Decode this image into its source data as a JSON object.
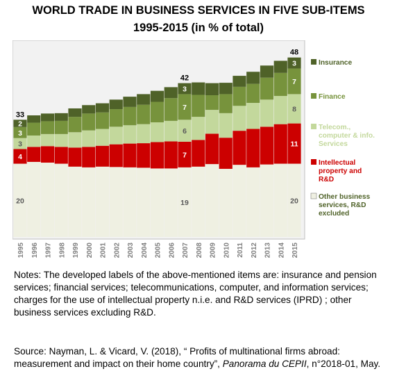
{
  "title": "WORLD TRADE IN BUSINESS SERVICES IN FIVE SUB-ITEMS",
  "subtitle": "1995-2015 (in % of total)",
  "notes": "Notes:  The developed labels of the above-mentioned items are: insurance and pension services; financial services; telecommunications, computer, and information  services; charges for the use of intellectual property n.i.e. and R&D services (IPRD) ; other business services excluding R&D.",
  "source": {
    "before": "Source: Nayman, L. & Vicard, V. (2018), “ Profits of multinational firms abroad: measurement and impact on their home country”, ",
    "italic": "Panorama du CEPII",
    "after": ", n°2018-01, May."
  },
  "chart_data": {
    "type": "bar",
    "stacked": true,
    "categories": [
      "1995",
      "1996",
      "1997",
      "1998",
      "1999",
      "2000",
      "2001",
      "2002",
      "2003",
      "2004",
      "2005",
      "2006",
      "2007",
      "2008",
      "2009",
      "2010",
      "2011",
      "2012",
      "2013",
      "2014",
      "2015"
    ],
    "series": [
      {
        "name": "Other business services, R&D excluded",
        "color": "#eff0e2",
        "values": [
          20,
          20.5,
          20.3,
          20,
          19.2,
          19,
          19.2,
          19.1,
          19,
          18.9,
          18.7,
          18.7,
          19,
          19.2,
          19.9,
          18.6,
          19.7,
          19,
          19.8,
          20,
          20
        ]
      },
      {
        "name": "Intellectual property and R&D",
        "color": "#cc0000",
        "values": [
          4,
          4.1,
          4.5,
          4.6,
          5.2,
          5.6,
          5.7,
          6.2,
          6.5,
          6.7,
          7.2,
          7.4,
          7,
          7.3,
          8.3,
          8.5,
          9.3,
          10.5,
          10.3,
          10.8,
          11
        ]
      },
      {
        "name": "Telecom., computer & info. Services",
        "color": "#c3d89c",
        "values": [
          3,
          3.1,
          3.3,
          3.5,
          4.2,
          4.5,
          4.6,
          4.8,
          5.0,
          5.2,
          5.4,
          5.6,
          6,
          6.3,
          6.5,
          6.7,
          6.8,
          7.1,
          7.4,
          7.7,
          8
        ]
      },
      {
        "name": "Finance",
        "color": "#77933c",
        "values": [
          3,
          3.5,
          3.5,
          3.6,
          4.2,
          4.6,
          4.5,
          4.8,
          5.0,
          5.3,
          5.6,
          6.2,
          7,
          6.0,
          4.0,
          5.2,
          5.2,
          5.2,
          6.0,
          6.3,
          7
        ]
      },
      {
        "name": "Insurance",
        "color": "#4f6228",
        "values": [
          2,
          2.0,
          2.1,
          2.1,
          2.3,
          2.3,
          2.5,
          2.6,
          2.8,
          2.9,
          3.0,
          3.0,
          3,
          3.4,
          3.3,
          3.1,
          3.0,
          3.3,
          3.3,
          3.3,
          3
        ]
      }
    ],
    "totals": [
      {
        "category": "1995",
        "label": "33"
      },
      {
        "category": "2007",
        "label": "42"
      },
      {
        "category": "2015",
        "label": "48"
      }
    ],
    "data_labels": [
      {
        "category": "1995",
        "values": [
          "20",
          "4",
          "3",
          "3",
          "2"
        ]
      },
      {
        "category": "2007",
        "values": [
          "19",
          "7",
          "6",
          "7",
          "3"
        ]
      },
      {
        "category": "2015",
        "values": [
          "20",
          "11",
          "8",
          "7",
          "3"
        ]
      }
    ],
    "legend": [
      {
        "lines": [
          "Insurance"
        ]
      },
      {
        "lines": [
          "Finance"
        ]
      },
      {
        "lines": [
          "Telecom.,",
          "computer & info.",
          "Services"
        ]
      },
      {
        "lines": [
          "Intellectual",
          "property and",
          "R&D"
        ]
      },
      {
        "lines": [
          "Other business",
          "services, R&D",
          "excluded"
        ]
      }
    ],
    "legend_position": "right",
    "ylim": [
      0,
      48
    ],
    "grid": false,
    "background": "#f2f2f2"
  }
}
